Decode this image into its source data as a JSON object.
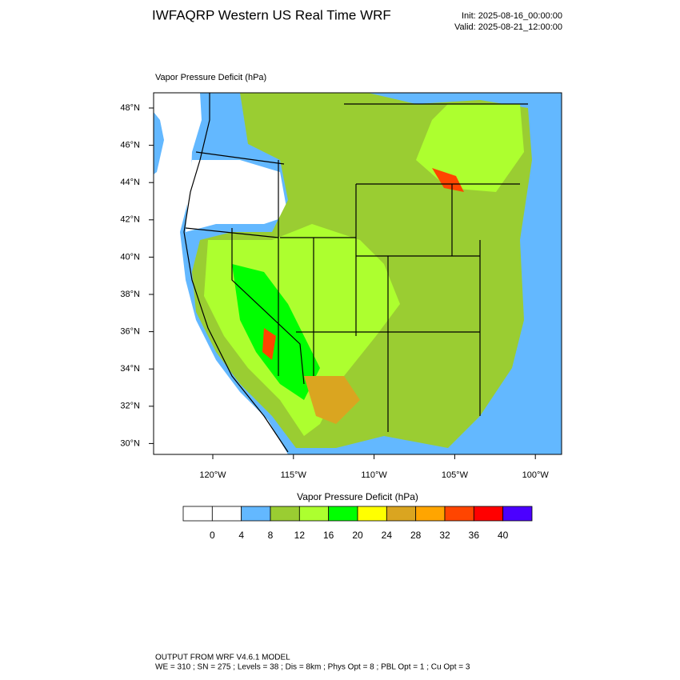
{
  "header": {
    "title": "IWFAQRP Western US Real Time WRF",
    "init": "Init: 2025-08-16_00:00:00",
    "valid": "Valid: 2025-08-21_12:00:00"
  },
  "map": {
    "subtitle": "Vapor Pressure Deficit   (hPa)",
    "lat_labels": [
      "48°N",
      "46°N",
      "44°N",
      "42°N",
      "40°N",
      "38°N",
      "36°N",
      "34°N",
      "32°N",
      "30°N"
    ],
    "lon_labels": [
      "120°W",
      "115°W",
      "110°W",
      "105°W",
      "100°W"
    ]
  },
  "colorbar": {
    "title": "Vapor Pressure Deficit  (hPa)",
    "colors": [
      "#ffffff",
      "#ffffff",
      "#63b8ff",
      "#9acd32",
      "#adff2f",
      "#00ff00",
      "#ffff00",
      "#daa520",
      "#ffa500",
      "#ff4500",
      "#ff0000",
      "#4b00ff"
    ],
    "labels": [
      0,
      4,
      8,
      12,
      16,
      20,
      24,
      28,
      32,
      36,
      40
    ]
  },
  "footer": {
    "line1": "OUTPUT FROM WRF V4.6.1 MODEL",
    "line2": "WE = 310 ; SN = 275 ; Levels = 38 ; Dis = 8km ; Phys Opt = 8 ; PBL Opt = 1 ; Cu Opt = 3"
  }
}
